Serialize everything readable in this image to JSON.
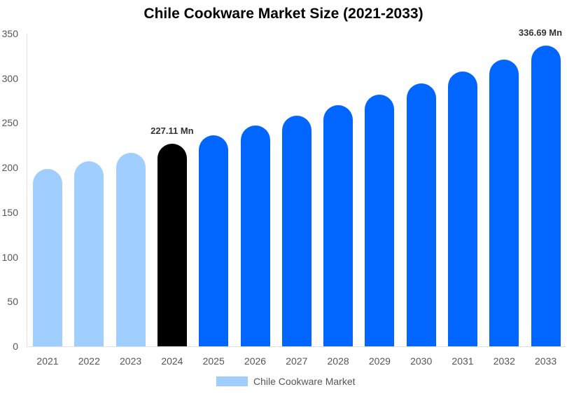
{
  "chart_data": {
    "type": "bar",
    "title": "Chile Cookware Market Size (2021-2033)",
    "xlabel": "",
    "ylabel": "",
    "ylim": [
      0,
      350
    ],
    "yticks": [
      0,
      50,
      100,
      150,
      200,
      250,
      300,
      350
    ],
    "categories": [
      "2021",
      "2022",
      "2023",
      "2024",
      "2025",
      "2026",
      "2027",
      "2028",
      "2029",
      "2030",
      "2031",
      "2032",
      "2033"
    ],
    "series": [
      {
        "name": "Chile Cookware Market",
        "values": [
          198.6,
          207.0,
          216.5,
          227.11,
          236.5,
          247.0,
          258.0,
          270.0,
          282.0,
          294.5,
          308.0,
          321.0,
          336.69
        ]
      }
    ],
    "bar_colors": [
      "#a0cfff",
      "#a0cfff",
      "#a0cfff",
      "#000000",
      "#0066ff",
      "#0066ff",
      "#0066ff",
      "#0066ff",
      "#0066ff",
      "#0066ff",
      "#0066ff",
      "#0066ff",
      "#0066ff"
    ],
    "annotations": [
      {
        "category": "2024",
        "text": "227.11 Mn"
      },
      {
        "category": "2033",
        "text": "336.69 Mn"
      }
    ],
    "legend": {
      "position": "bottom",
      "entries": [
        "Chile Cookware Market"
      ]
    },
    "grid": false
  },
  "legend": {
    "label": "Chile Cookware Market",
    "color": "#a0cfff"
  }
}
